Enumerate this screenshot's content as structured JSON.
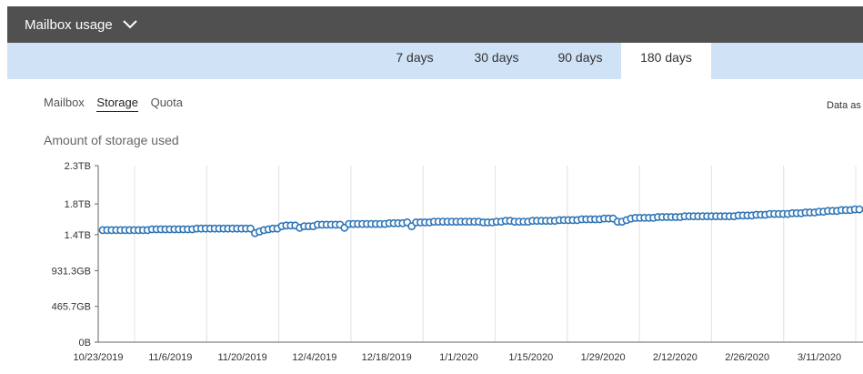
{
  "header": {
    "title": "Mailbox usage"
  },
  "period_tabs": [
    {
      "label": "7 days",
      "active": false
    },
    {
      "label": "30 days",
      "active": false
    },
    {
      "label": "90 days",
      "active": false
    },
    {
      "label": "180 days",
      "active": true
    }
  ],
  "sub_tabs": [
    {
      "label": "Mailbox",
      "active": false
    },
    {
      "label": "Storage",
      "active": true
    },
    {
      "label": "Quota",
      "active": false
    }
  ],
  "data_as_of": "Data as",
  "chart_title": "Amount of storage used",
  "colors": {
    "header_bg": "#505050",
    "tabbar_bg": "#cfe2f6",
    "series": "#2e75b6"
  },
  "chart_data": {
    "type": "line",
    "title": "Amount of storage used",
    "y_tick_labels": [
      "0B",
      "465.7GB",
      "931.3GB",
      "1.4TB",
      "1.8TB",
      "2.3TB"
    ],
    "ylim_tb": [
      0,
      2.3
    ],
    "x_tick_labels": [
      "10/23/2019",
      "11/6/2019",
      "11/20/2019",
      "12/4/2019",
      "12/18/2019",
      "1/1/2020",
      "1/15/2020",
      "1/29/2020",
      "2/12/2020",
      "2/26/2020",
      "3/11/2020"
    ],
    "grid": "vertical",
    "series": [
      {
        "values_tb": [
          1.46,
          1.46,
          1.46,
          1.46,
          1.46,
          1.46,
          1.46,
          1.46,
          1.46,
          1.46,
          1.46,
          1.47,
          1.47,
          1.47,
          1.47,
          1.47,
          1.47,
          1.47,
          1.47,
          1.47,
          1.47,
          1.48,
          1.48,
          1.48,
          1.48,
          1.48,
          1.48,
          1.48,
          1.48,
          1.48,
          1.48,
          1.48,
          1.48,
          1.48,
          1.42,
          1.44,
          1.46,
          1.47,
          1.48,
          1.48,
          1.51,
          1.52,
          1.52,
          1.52,
          1.49,
          1.51,
          1.51,
          1.51,
          1.53,
          1.53,
          1.53,
          1.53,
          1.53,
          1.53,
          1.49,
          1.54,
          1.54,
          1.54,
          1.54,
          1.54,
          1.54,
          1.54,
          1.54,
          1.54,
          1.55,
          1.55,
          1.55,
          1.55,
          1.56,
          1.51,
          1.56,
          1.56,
          1.56,
          1.56,
          1.57,
          1.57,
          1.57,
          1.57,
          1.57,
          1.57,
          1.57,
          1.57,
          1.57,
          1.57,
          1.57,
          1.56,
          1.56,
          1.56,
          1.57,
          1.57,
          1.58,
          1.58,
          1.57,
          1.57,
          1.57,
          1.57,
          1.58,
          1.58,
          1.58,
          1.58,
          1.58,
          1.58,
          1.59,
          1.59,
          1.59,
          1.59,
          1.59,
          1.6,
          1.6,
          1.6,
          1.6,
          1.6,
          1.61,
          1.61,
          1.61,
          1.57,
          1.57,
          1.59,
          1.61,
          1.62,
          1.62,
          1.62,
          1.62,
          1.62,
          1.63,
          1.63,
          1.63,
          1.63,
          1.63,
          1.63,
          1.64,
          1.64,
          1.64,
          1.64,
          1.64,
          1.64,
          1.64,
          1.64,
          1.64,
          1.64,
          1.64,
          1.64,
          1.65,
          1.65,
          1.65,
          1.65,
          1.66,
          1.66,
          1.66,
          1.67,
          1.67,
          1.67,
          1.67,
          1.67,
          1.68,
          1.68,
          1.68,
          1.69,
          1.69,
          1.69,
          1.7,
          1.7,
          1.71,
          1.71,
          1.71,
          1.72,
          1.72,
          1.72,
          1.73,
          1.73
        ]
      }
    ]
  }
}
